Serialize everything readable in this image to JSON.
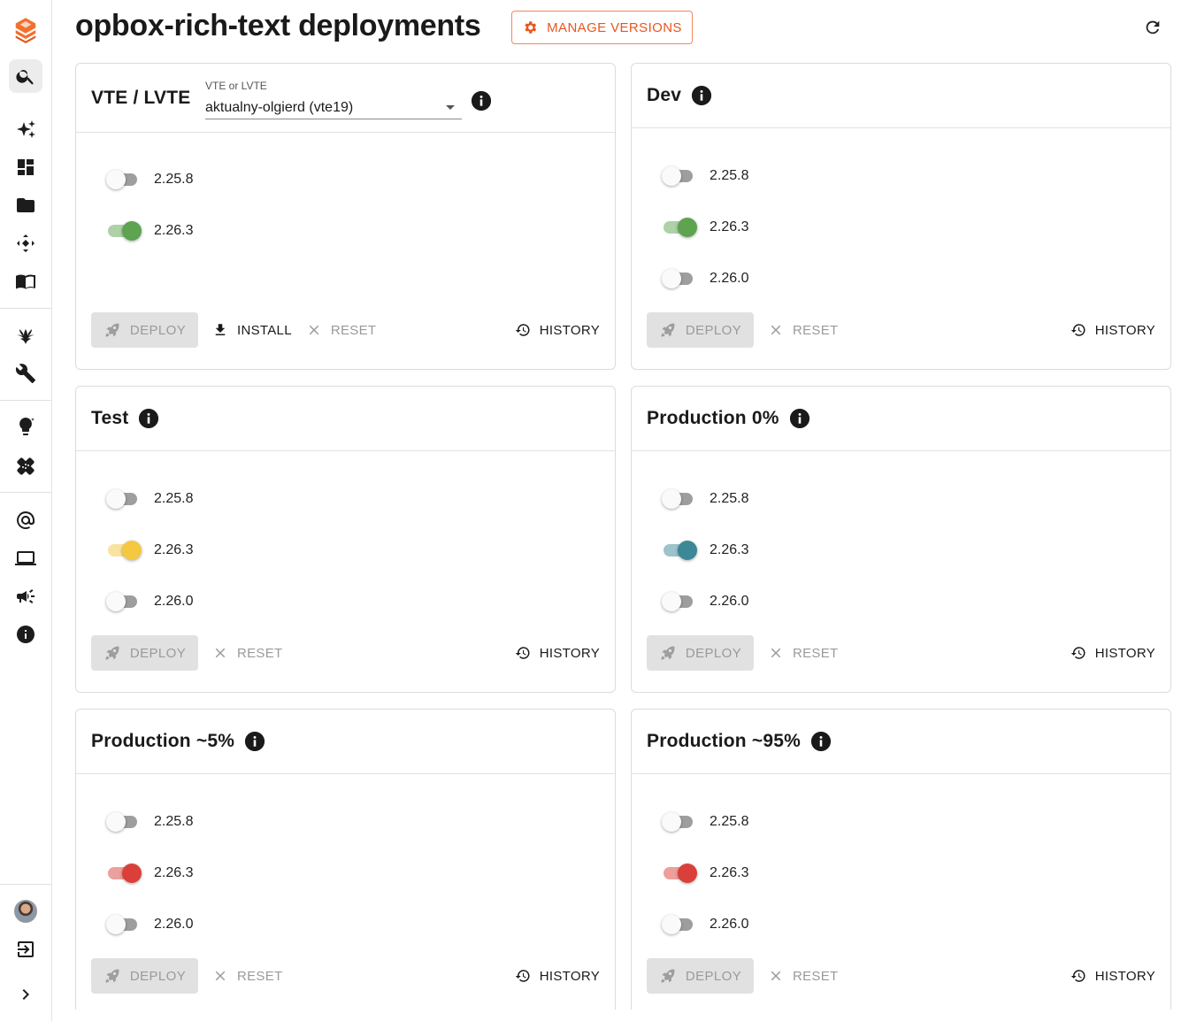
{
  "header": {
    "title": "opbox-rich-text deployments",
    "manage_label": "MANAGE VERSIONS",
    "accent": "#e8561d"
  },
  "sidebar": {
    "items": [
      {
        "icon": "search-icon"
      },
      {
        "icon": "sparkles-icon"
      },
      {
        "icon": "dashboard-icon"
      },
      {
        "icon": "folder-icon"
      },
      {
        "icon": "diamond-arrows-icon"
      },
      {
        "icon": "book-icon"
      },
      {
        "icon": "bird-logo-icon"
      },
      {
        "icon": "wrench-icon"
      },
      {
        "icon": "lightbulb-icon"
      },
      {
        "icon": "bandage-icon"
      },
      {
        "icon": "at-sign-icon"
      },
      {
        "icon": "laptop-icon"
      },
      {
        "icon": "megaphone-icon"
      },
      {
        "icon": "info-icon"
      },
      {
        "icon": "avatar"
      },
      {
        "icon": "logout-icon"
      },
      {
        "icon": "chevron-right-icon"
      }
    ]
  },
  "cards": {
    "vte": {
      "title": "VTE / LVTE",
      "select_label": "VTE or LVTE",
      "select_value": "aktualny-olgierd (vte19)",
      "versions": [
        "2.25.8",
        "2.26.3"
      ],
      "states": [
        false,
        true
      ],
      "on_color": "#5da350",
      "deploy": "DEPLOY",
      "install": "INSTALL",
      "reset": "RESET",
      "history": "HISTORY"
    },
    "dev": {
      "title": "Dev",
      "versions": [
        "2.25.8",
        "2.26.3",
        "2.26.0"
      ],
      "states": [
        false,
        true,
        false
      ],
      "on_color": "#5da350",
      "deploy": "DEPLOY",
      "reset": "RESET",
      "history": "HISTORY"
    },
    "test": {
      "title": "Test",
      "versions": [
        "2.25.8",
        "2.26.3",
        "2.26.0"
      ],
      "states": [
        false,
        true,
        false
      ],
      "on_color": "#f5c842",
      "deploy": "DEPLOY",
      "reset": "RESET",
      "history": "HISTORY"
    },
    "prod0": {
      "title": "Production 0%",
      "versions": [
        "2.25.8",
        "2.26.3",
        "2.26.0"
      ],
      "states": [
        false,
        true,
        false
      ],
      "on_color": "#3c8897",
      "deploy": "DEPLOY",
      "reset": "RESET",
      "history": "HISTORY"
    },
    "prod5": {
      "title": "Production ~5%",
      "versions": [
        "2.25.8",
        "2.26.3",
        "2.26.0"
      ],
      "states": [
        false,
        true,
        false
      ],
      "on_color": "#db3f3a",
      "deploy": "DEPLOY",
      "reset": "RESET",
      "history": "HISTORY"
    },
    "prod95": {
      "title": "Production ~95%",
      "versions": [
        "2.25.8",
        "2.26.3",
        "2.26.0"
      ],
      "states": [
        false,
        true,
        false
      ],
      "on_color": "#db3f3a",
      "deploy": "DEPLOY",
      "reset": "RESET",
      "history": "HISTORY"
    }
  }
}
